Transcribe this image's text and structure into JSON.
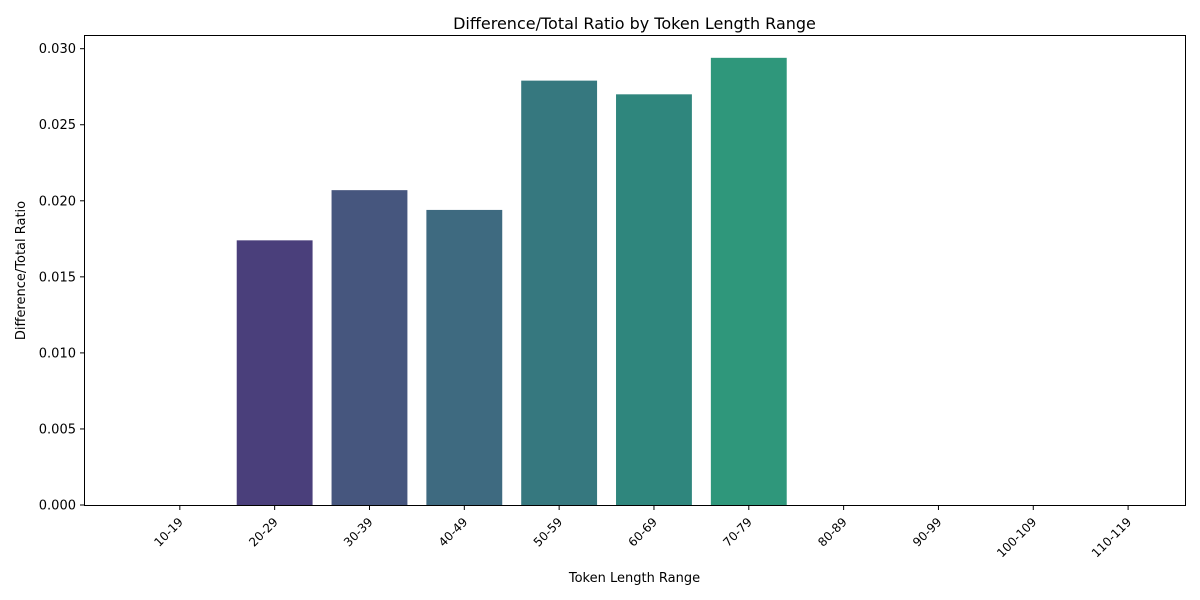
{
  "chart_data": {
    "type": "bar",
    "title": "Difference/Total Ratio by Token Length Range",
    "xlabel": "Token Length Range",
    "ylabel": "Difference/Total Ratio",
    "categories": [
      "10-19",
      "20-29",
      "30-39",
      "40-49",
      "50-59",
      "60-69",
      "70-79",
      "80-89",
      "90-99",
      "100-109",
      "110-119"
    ],
    "values": [
      0,
      0.0174,
      0.0207,
      0.0194,
      0.0279,
      0.027,
      0.0294,
      0,
      0,
      0,
      0
    ],
    "colors": [
      "#482475",
      "#4a3f7b",
      "#46567e",
      "#3e6a80",
      "#36787f",
      "#2f867d",
      "#2f977b",
      "#30a678",
      "#35b575",
      "#40c270",
      "#4fcf69"
    ],
    "ylim": [
      0,
      0.0309
    ],
    "yticks": [
      0,
      0.005,
      0.01,
      0.015,
      0.02,
      0.025,
      0.03
    ],
    "ytick_labels": [
      "0.000",
      "0.005",
      "0.010",
      "0.015",
      "0.020",
      "0.025",
      "0.030"
    ],
    "grid": false
  }
}
